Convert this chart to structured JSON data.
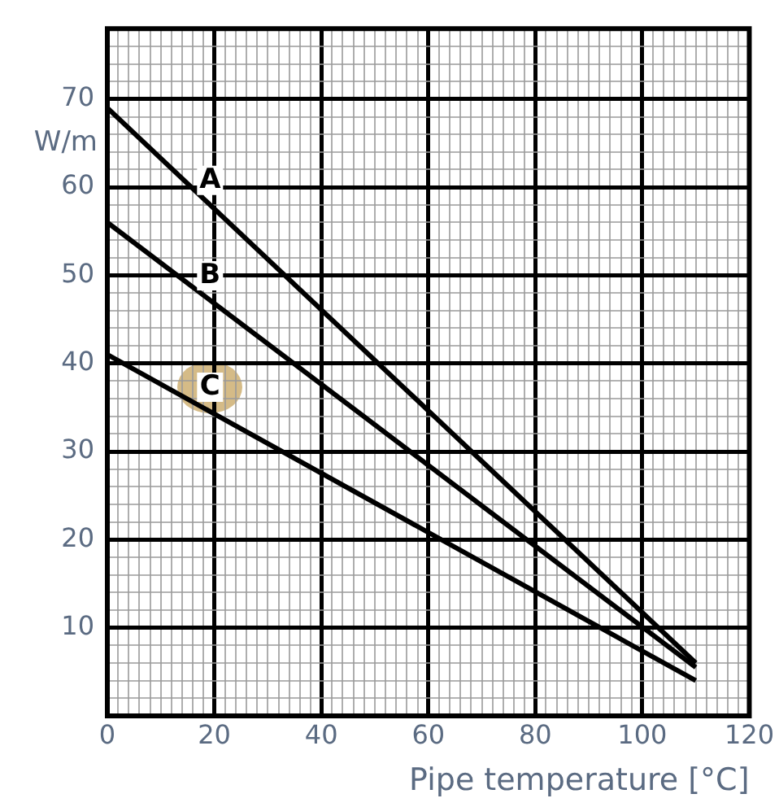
{
  "chart_data": {
    "type": "line",
    "xlabel": "Pipe temperature [°C]",
    "ylabel": "W/m",
    "x": [
      0,
      110
    ],
    "series": [
      {
        "name": "A",
        "color": "#000000",
        "values": [
          69,
          6
        ]
      },
      {
        "name": "B",
        "color": "#000000",
        "values": [
          56,
          5.5
        ]
      },
      {
        "name": "C",
        "color": "#000000",
        "values": [
          41,
          4
        ]
      }
    ],
    "xlim": [
      0,
      120
    ],
    "ylim": [
      0,
      78
    ],
    "xticks": [
      0,
      {
        "value": 2,
        "label": null
      },
      {
        "value": 4,
        "label": null
      },
      {
        "value": 6,
        "label": null
      },
      {
        "value": 8,
        "label": null
      },
      {
        "value": 10,
        "label": null
      },
      {
        "value": 12,
        "label": null
      },
      {
        "value": 14,
        "label": null
      },
      {
        "value": 16,
        "label": null
      },
      {
        "value": 18,
        "label": null
      },
      20,
      {
        "value": 22,
        "label": null
      },
      {
        "value": 24,
        "label": null
      },
      {
        "value": 26,
        "label": null
      },
      {
        "value": 28,
        "label": null
      },
      {
        "value": 30,
        "label": null
      },
      {
        "value": 32,
        "label": null
      },
      {
        "value": 34,
        "label": null
      },
      {
        "value": 36,
        "label": null
      },
      {
        "value": 38,
        "label": null
      },
      40,
      {
        "value": 42,
        "label": null
      },
      {
        "value": 44,
        "label": null
      },
      {
        "value": 46,
        "label": null
      },
      {
        "value": 48,
        "label": null
      },
      {
        "value": 50,
        "label": null
      },
      {
        "value": 52,
        "label": null
      },
      {
        "value": 54,
        "label": null
      },
      {
        "value": 56,
        "label": null
      },
      {
        "value": 58,
        "label": null
      },
      60,
      {
        "value": 62,
        "label": null
      },
      {
        "value": 64,
        "label": null
      },
      {
        "value": 66,
        "label": null
      },
      {
        "value": 68,
        "label": null
      },
      {
        "value": 70,
        "label": null
      },
      {
        "value": 72,
        "label": null
      },
      {
        "value": 74,
        "label": null
      },
      {
        "value": 76,
        "label": null
      },
      {
        "value": 78,
        "label": null
      },
      80,
      {
        "value": 82,
        "label": null
      },
      {
        "value": 84,
        "label": null
      },
      {
        "value": 86,
        "label": null
      },
      {
        "value": 88,
        "label": null
      },
      {
        "value": 90,
        "label": null
      },
      {
        "value": 92,
        "label": null
      },
      {
        "value": 94,
        "label": null
      },
      {
        "value": 96,
        "label": null
      },
      {
        "value": 98,
        "label": null
      },
      100,
      {
        "value": 102,
        "label": null
      },
      {
        "value": 104,
        "label": null
      },
      {
        "value": 106,
        "label": null
      },
      {
        "value": 108,
        "label": null
      },
      {
        "value": 110,
        "label": null
      },
      {
        "value": 112,
        "label": null
      },
      {
        "value": 114,
        "label": null
      },
      {
        "value": 116,
        "label": null
      },
      {
        "value": 118,
        "label": null
      },
      120
    ],
    "yticks": [
      {
        "value": 0,
        "label": null
      },
      {
        "value": 2,
        "label": null
      },
      {
        "value": 4,
        "label": null
      },
      {
        "value": 6,
        "label": null
      },
      {
        "value": 8,
        "label": null
      },
      10,
      {
        "value": 12,
        "label": null
      },
      {
        "value": 14,
        "label": null
      },
      {
        "value": 16,
        "label": null
      },
      {
        "value": 18,
        "label": null
      },
      20,
      {
        "value": 22,
        "label": null
      },
      {
        "value": 24,
        "label": null
      },
      {
        "value": 26,
        "label": null
      },
      {
        "value": 28,
        "label": null
      },
      30,
      {
        "value": 32,
        "label": null
      },
      {
        "value": 34,
        "label": null
      },
      {
        "value": 36,
        "label": null
      },
      {
        "value": 38,
        "label": null
      },
      40,
      {
        "value": 42,
        "label": null
      },
      {
        "value": 44,
        "label": null
      },
      {
        "value": 46,
        "label": null
      },
      {
        "value": 48,
        "label": null
      },
      50,
      {
        "value": 52,
        "label": null
      },
      {
        "value": 54,
        "label": null
      },
      {
        "value": 56,
        "label": null
      },
      {
        "value": 58,
        "label": null
      },
      60,
      {
        "value": 62,
        "label": null
      },
      {
        "value": 64,
        "label": null
      },
      {
        "value": 66,
        "label": null
      },
      {
        "value": 68,
        "label": null
      },
      70,
      {
        "value": 72,
        "label": null
      },
      {
        "value": 74,
        "label": null
      },
      {
        "value": 76,
        "label": null
      },
      {
        "value": 78,
        "label": null
      }
    ],
    "grid": true,
    "line_style": "solid"
  }
}
